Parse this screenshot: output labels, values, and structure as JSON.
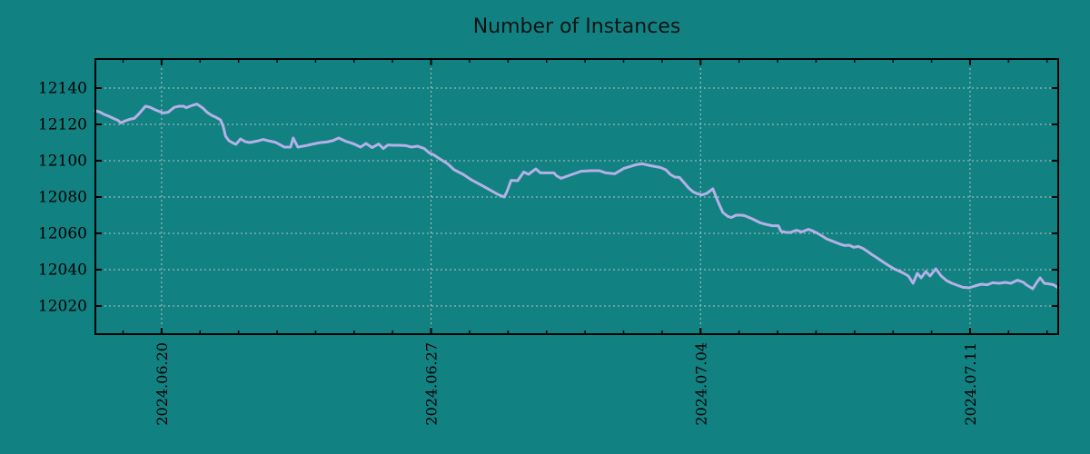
{
  "chart_data": {
    "type": "line",
    "title": "Number of Instances",
    "legend": null,
    "grid": true,
    "colors": {
      "background": "#128182",
      "grid": "#b9c3c3",
      "axis": "#000000",
      "tick_text": "#000000",
      "title_text": "#0d1414",
      "series": "#b4b1e7"
    },
    "x_axis": {
      "unit": "days since 2024-06-18",
      "range_days": [
        0.28,
        25.29
      ],
      "minor_tick_interval_days": 1,
      "ticks": [
        {
          "day": 2,
          "label": "2024.06.20"
        },
        {
          "day": 9,
          "label": "2024.06.27"
        },
        {
          "day": 16,
          "label": "2024.07.04"
        },
        {
          "day": 23,
          "label": "2024.07.11"
        }
      ]
    },
    "y_axis": {
      "range": [
        12004.5,
        12156
      ],
      "tick_values": [
        12020,
        12040,
        12060,
        12080,
        12100,
        12120,
        12140
      ]
    },
    "series": [
      {
        "name": "Number of Instances",
        "color": "#b4b1e7",
        "points": [
          [
            0.28,
            12127.5
          ],
          [
            0.4,
            12126.8
          ],
          [
            0.51,
            12125.5
          ],
          [
            0.63,
            12124.5
          ],
          [
            0.75,
            12123.3
          ],
          [
            0.87,
            12122.2
          ],
          [
            0.94,
            12120.8
          ],
          [
            1.06,
            12122.0
          ],
          [
            1.17,
            12122.8
          ],
          [
            1.29,
            12123.3
          ],
          [
            1.41,
            12125.8
          ],
          [
            1.5,
            12128.0
          ],
          [
            1.58,
            12130.0
          ],
          [
            1.69,
            12129.5
          ],
          [
            1.81,
            12128.3
          ],
          [
            1.93,
            12127.2
          ],
          [
            2.05,
            12126.3
          ],
          [
            2.17,
            12126.7
          ],
          [
            2.33,
            12129.4
          ],
          [
            2.45,
            12130.0
          ],
          [
            2.57,
            12130.0
          ],
          [
            2.64,
            12129.2
          ],
          [
            2.8,
            12130.5
          ],
          [
            2.92,
            12131.2
          ],
          [
            3.06,
            12129.2
          ],
          [
            3.18,
            12126.7
          ],
          [
            3.3,
            12125.0
          ],
          [
            3.42,
            12123.8
          ],
          [
            3.53,
            12122.5
          ],
          [
            3.6,
            12119.0
          ],
          [
            3.66,
            12113.5
          ],
          [
            3.75,
            12111.0
          ],
          [
            3.85,
            12109.8
          ],
          [
            3.93,
            12109.0
          ],
          [
            4.05,
            12112.0
          ],
          [
            4.17,
            12110.5
          ],
          [
            4.29,
            12110.0
          ],
          [
            4.48,
            12110.8
          ],
          [
            4.64,
            12111.7
          ],
          [
            4.81,
            12110.8
          ],
          [
            4.95,
            12110.2
          ],
          [
            5.04,
            12109.2
          ],
          [
            5.19,
            12107.5
          ],
          [
            5.35,
            12107.5
          ],
          [
            5.42,
            12112.5
          ],
          [
            5.54,
            12107.5
          ],
          [
            5.75,
            12108.3
          ],
          [
            5.89,
            12109.0
          ],
          [
            6.13,
            12110.0
          ],
          [
            6.29,
            12110.3
          ],
          [
            6.44,
            12111.0
          ],
          [
            6.6,
            12112.5
          ],
          [
            6.77,
            12110.8
          ],
          [
            7.0,
            12109.2
          ],
          [
            7.17,
            12107.5
          ],
          [
            7.31,
            12109.5
          ],
          [
            7.47,
            12107.2
          ],
          [
            7.64,
            12109.2
          ],
          [
            7.76,
            12106.7
          ],
          [
            7.88,
            12108.7
          ],
          [
            8.02,
            12108.5
          ],
          [
            8.18,
            12108.5
          ],
          [
            8.35,
            12108.3
          ],
          [
            8.49,
            12107.5
          ],
          [
            8.65,
            12108.0
          ],
          [
            8.82,
            12106.7
          ],
          [
            8.96,
            12104.2
          ],
          [
            9.06,
            12103.3
          ],
          [
            9.24,
            12100.8
          ],
          [
            9.43,
            12098.3
          ],
          [
            9.6,
            12095.0
          ],
          [
            9.83,
            12092.5
          ],
          [
            10.07,
            12089.2
          ],
          [
            10.31,
            12086.5
          ],
          [
            10.54,
            12083.8
          ],
          [
            10.73,
            12081.5
          ],
          [
            10.9,
            12080.0
          ],
          [
            10.97,
            12083.0
          ],
          [
            11.08,
            12089.2
          ],
          [
            11.25,
            12089.0
          ],
          [
            11.41,
            12093.8
          ],
          [
            11.53,
            12092.5
          ],
          [
            11.72,
            12095.5
          ],
          [
            11.84,
            12093.3
          ],
          [
            11.96,
            12093.3
          ],
          [
            12.19,
            12093.3
          ],
          [
            12.26,
            12091.7
          ],
          [
            12.38,
            12090.3
          ],
          [
            12.67,
            12092.5
          ],
          [
            12.9,
            12094.2
          ],
          [
            13.14,
            12094.5
          ],
          [
            13.37,
            12094.5
          ],
          [
            13.54,
            12093.3
          ],
          [
            13.77,
            12092.8
          ],
          [
            14.01,
            12095.8
          ],
          [
            14.32,
            12097.8
          ],
          [
            14.48,
            12098.3
          ],
          [
            14.72,
            12097.2
          ],
          [
            14.95,
            12096.3
          ],
          [
            15.1,
            12095.0
          ],
          [
            15.21,
            12092.5
          ],
          [
            15.33,
            12091.0
          ],
          [
            15.45,
            12090.8
          ],
          [
            15.57,
            12088.0
          ],
          [
            15.69,
            12085.0
          ],
          [
            15.81,
            12082.8
          ],
          [
            15.92,
            12081.8
          ],
          [
            16.04,
            12081.2
          ],
          [
            16.16,
            12082.0
          ],
          [
            16.32,
            12084.5
          ],
          [
            16.46,
            12077.0
          ],
          [
            16.58,
            12071.5
          ],
          [
            16.71,
            12069.3
          ],
          [
            16.8,
            12068.7
          ],
          [
            16.92,
            12070.0
          ],
          [
            17.08,
            12070.0
          ],
          [
            17.15,
            12069.7
          ],
          [
            17.31,
            12068.3
          ],
          [
            17.55,
            12065.8
          ],
          [
            17.69,
            12065.0
          ],
          [
            17.86,
            12064.2
          ],
          [
            18.02,
            12064.2
          ],
          [
            18.09,
            12061.2
          ],
          [
            18.23,
            12060.5
          ],
          [
            18.33,
            12060.5
          ],
          [
            18.49,
            12061.7
          ],
          [
            18.63,
            12060.8
          ],
          [
            18.8,
            12062.2
          ],
          [
            18.92,
            12061.3
          ],
          [
            19.04,
            12060.0
          ],
          [
            19.16,
            12058.5
          ],
          [
            19.27,
            12057.0
          ],
          [
            19.39,
            12056.0
          ],
          [
            19.51,
            12055.0
          ],
          [
            19.63,
            12054.0
          ],
          [
            19.75,
            12053.3
          ],
          [
            19.86,
            12053.5
          ],
          [
            19.98,
            12052.3
          ],
          [
            20.1,
            12052.8
          ],
          [
            20.22,
            12051.7
          ],
          [
            20.34,
            12050.0
          ],
          [
            20.45,
            12048.3
          ],
          [
            20.57,
            12046.7
          ],
          [
            20.69,
            12045.0
          ],
          [
            20.81,
            12043.3
          ],
          [
            20.93,
            12041.7
          ],
          [
            21.04,
            12040.3
          ],
          [
            21.16,
            12039.2
          ],
          [
            21.28,
            12038.0
          ],
          [
            21.4,
            12036.5
          ],
          [
            21.52,
            12032.5
          ],
          [
            21.63,
            12038.0
          ],
          [
            21.73,
            12035.5
          ],
          [
            21.85,
            12039.0
          ],
          [
            21.96,
            12036.5
          ],
          [
            22.11,
            12040.5
          ],
          [
            22.25,
            12036.5
          ],
          [
            22.39,
            12034.0
          ],
          [
            22.53,
            12032.5
          ],
          [
            22.7,
            12031.2
          ],
          [
            22.81,
            12030.3
          ],
          [
            22.98,
            12030.0
          ],
          [
            23.12,
            12031.0
          ],
          [
            23.29,
            12032.0
          ],
          [
            23.45,
            12031.7
          ],
          [
            23.59,
            12032.8
          ],
          [
            23.76,
            12032.5
          ],
          [
            23.92,
            12033.0
          ],
          [
            24.06,
            12032.5
          ],
          [
            24.23,
            12034.2
          ],
          [
            24.39,
            12033.0
          ],
          [
            24.46,
            12031.7
          ],
          [
            24.63,
            12029.5
          ],
          [
            24.75,
            12033.5
          ],
          [
            24.82,
            12035.5
          ],
          [
            24.93,
            12032.5
          ],
          [
            25.05,
            12032.2
          ],
          [
            25.17,
            12031.7
          ],
          [
            25.29,
            12030.0
          ]
        ]
      }
    ]
  }
}
